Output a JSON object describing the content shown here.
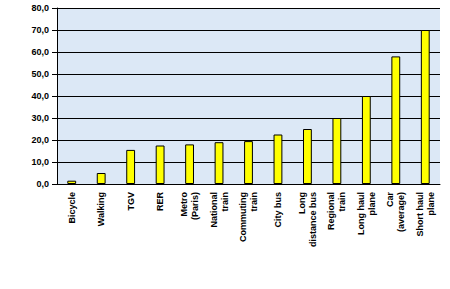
{
  "chart_data": {
    "type": "bar",
    "categories": [
      "Bicycle",
      "Walking",
      "TGV",
      "RER",
      "Metro\n(Paris)",
      "National\ntrain",
      "Commuting\ntrain",
      "City bus",
      "Long\ndistance bus",
      "Regional\ntrain",
      "Long haul\nplane",
      "Car\n(average)",
      "Short haul\nplane"
    ],
    "values": [
      1.5,
      5,
      15.5,
      17.5,
      18,
      19,
      19.5,
      22.5,
      25,
      30,
      40,
      58,
      70
    ],
    "color": "#ffff00",
    "ylim": [
      0,
      80
    ],
    "yticks": [
      {
        "value": 0,
        "label": "0,0"
      },
      {
        "value": 10,
        "label": "10,0"
      },
      {
        "value": 20,
        "label": "20,0"
      },
      {
        "value": 30,
        "label": "30,0"
      },
      {
        "value": 40,
        "label": "40,0"
      },
      {
        "value": 50,
        "label": "50,0"
      },
      {
        "value": 60,
        "label": "60,0"
      },
      {
        "value": 70,
        "label": "70,0"
      },
      {
        "value": 80,
        "label": "80,0"
      }
    ],
    "grid": true
  }
}
